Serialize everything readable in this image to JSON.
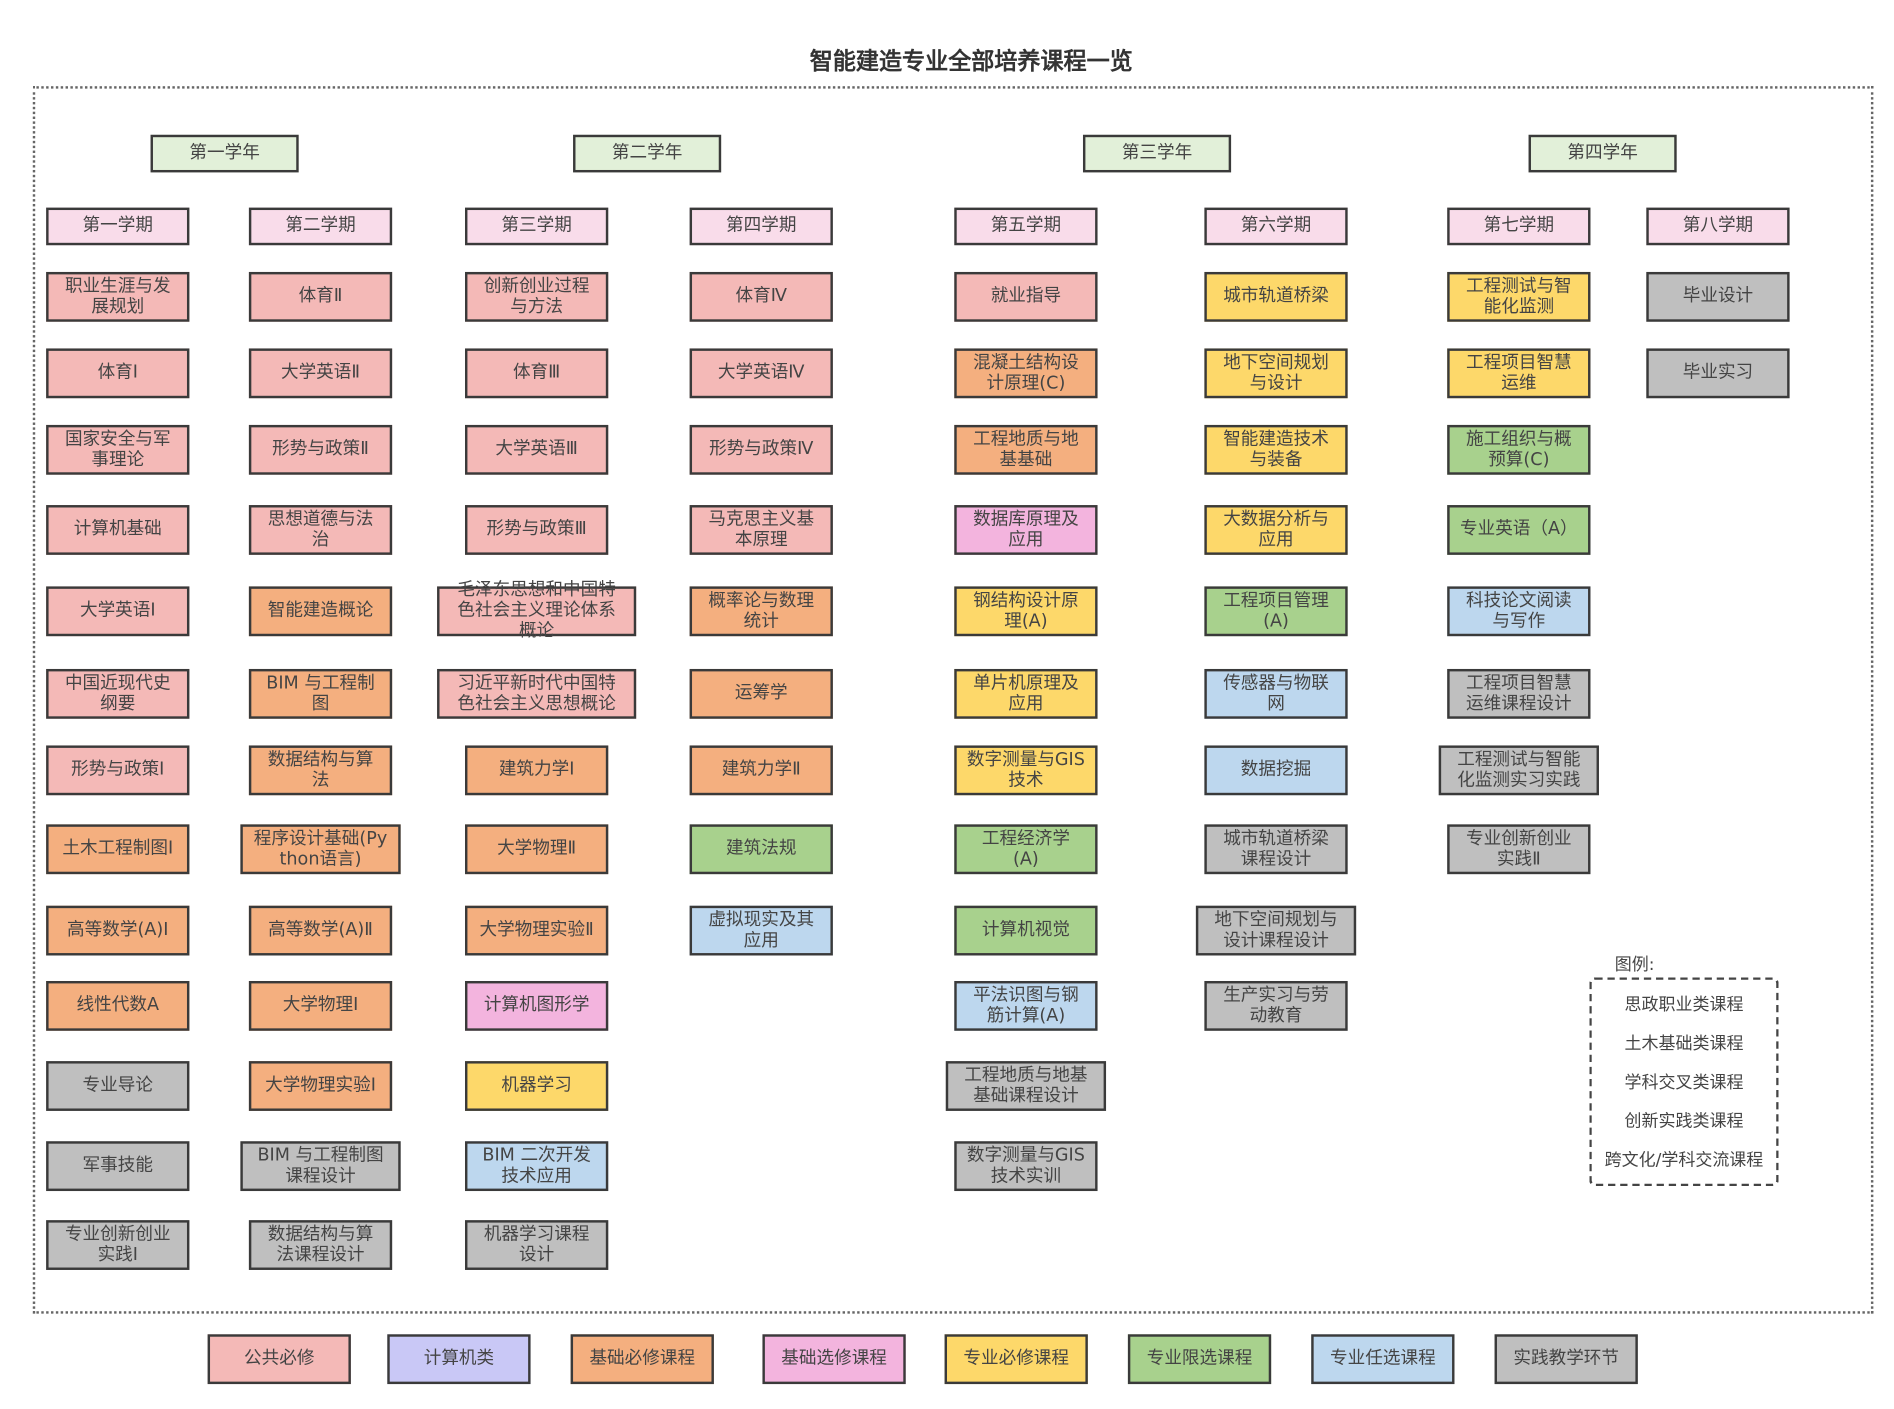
{
  "title": "智能建造专业全部培养课程一览",
  "categories": {
    "public": {
      "label": "公共必修",
      "color": "#f4b9b7"
    },
    "computer": {
      "label": "计算机类",
      "color": "#c9c8f6"
    },
    "basic": {
      "label": "基础必修课程",
      "color": "#f4af7f"
    },
    "basic_elective": {
      "label": "基础选修课程",
      "color": "#f3b4de"
    },
    "major": {
      "label": "专业必修课程",
      "color": "#fdd86a"
    },
    "major_limited": {
      "label": "专业限选课程",
      "color": "#a8d18d"
    },
    "major_optional": {
      "label": "专业任选课程",
      "color": "#bdd7ee"
    },
    "practice": {
      "label": "实践教学环节",
      "color": "#bfbfbf"
    }
  },
  "category_order": [
    "public",
    "computer",
    "basic",
    "basic_elective",
    "major",
    "major_limited",
    "major_optional",
    "practice"
  ],
  "years": [
    "第一学年",
    "第二学年",
    "第三学年",
    "第四学年"
  ],
  "semesters": [
    {
      "label": "第一学期",
      "courses": [
        {
          "name": "职业生涯与发展规划",
          "cat": "public"
        },
        {
          "name": "体育Ⅰ",
          "cat": "public"
        },
        {
          "name": "国家安全与军事理论",
          "cat": "public"
        },
        {
          "name": "计算机基础",
          "cat": "public"
        },
        {
          "name": "大学英语Ⅰ",
          "cat": "public"
        },
        {
          "name": "中国近现代史纲要",
          "cat": "public"
        },
        {
          "name": "形势与政策Ⅰ",
          "cat": "public"
        },
        {
          "name": "土木工程制图Ⅰ",
          "cat": "basic"
        },
        {
          "name": "高等数学(A)Ⅰ",
          "cat": "basic"
        },
        {
          "name": "线性代数A",
          "cat": "basic"
        },
        {
          "name": "专业导论",
          "cat": "practice"
        },
        {
          "name": "军事技能",
          "cat": "practice"
        },
        {
          "name": "专业创新创业实践Ⅰ",
          "cat": "practice"
        }
      ]
    },
    {
      "label": "第二学期",
      "courses": [
        {
          "name": "体育Ⅱ",
          "cat": "public"
        },
        {
          "name": "大学英语Ⅱ",
          "cat": "public"
        },
        {
          "name": "形势与政策Ⅱ",
          "cat": "public"
        },
        {
          "name": "思想道德与法治",
          "cat": "public"
        },
        {
          "name": "智能建造概论",
          "cat": "basic"
        },
        {
          "name": "BIM 与工程制图",
          "cat": "basic"
        },
        {
          "name": "数据结构与算法",
          "cat": "basic"
        },
        {
          "name": "程序设计基础(Python语言)",
          "cat": "basic"
        },
        {
          "name": "高等数学(A)Ⅱ",
          "cat": "basic"
        },
        {
          "name": "大学物理Ⅰ",
          "cat": "basic"
        },
        {
          "name": "大学物理实验Ⅰ",
          "cat": "basic"
        },
        {
          "name": "BIM 与工程制图课程设计",
          "cat": "practice"
        },
        {
          "name": "数据结构与算法课程设计",
          "cat": "practice"
        }
      ]
    },
    {
      "label": "第三学期",
      "courses": [
        {
          "name": "创新创业过程与方法",
          "cat": "public"
        },
        {
          "name": "体育Ⅲ",
          "cat": "public"
        },
        {
          "name": "大学英语Ⅲ",
          "cat": "public"
        },
        {
          "name": "形势与政策Ⅲ",
          "cat": "public"
        },
        {
          "name": "毛泽东思想和中国特色社会主义理论体系概论",
          "cat": "public"
        },
        {
          "name": "习近平新时代中国特色社会主义思想概论",
          "cat": "public"
        },
        {
          "name": "建筑力学Ⅰ",
          "cat": "basic"
        },
        {
          "name": "大学物理Ⅱ",
          "cat": "basic"
        },
        {
          "name": "大学物理实验Ⅱ",
          "cat": "basic"
        },
        {
          "name": "计算机图形学",
          "cat": "basic_elective"
        },
        {
          "name": "机器学习",
          "cat": "major"
        },
        {
          "name": "BIM 二次开发技术应用",
          "cat": "major_optional"
        },
        {
          "name": "机器学习课程设计",
          "cat": "practice"
        }
      ]
    },
    {
      "label": "第四学期",
      "courses": [
        {
          "name": "体育Ⅳ",
          "cat": "public"
        },
        {
          "name": "大学英语Ⅳ",
          "cat": "public"
        },
        {
          "name": "形势与政策Ⅳ",
          "cat": "public"
        },
        {
          "name": "马克思主义基本原理",
          "cat": "public"
        },
        {
          "name": "概率论与数理统计",
          "cat": "basic"
        },
        {
          "name": "运筹学",
          "cat": "basic"
        },
        {
          "name": "建筑力学Ⅱ",
          "cat": "basic"
        },
        {
          "name": "建筑法规",
          "cat": "major_limited"
        },
        {
          "name": "虚拟现实及其应用",
          "cat": "major_optional"
        }
      ]
    },
    {
      "label": "第五学期",
      "courses": [
        {
          "name": "就业指导",
          "cat": "public"
        },
        {
          "name": "混凝土结构设计原理(C)",
          "cat": "basic"
        },
        {
          "name": "工程地质与地基基础",
          "cat": "basic"
        },
        {
          "name": "数据库原理及应用",
          "cat": "basic_elective"
        },
        {
          "name": "钢结构设计原理(A)",
          "cat": "major"
        },
        {
          "name": "单片机原理及应用",
          "cat": "major"
        },
        {
          "name": "数字测量与GIS技术",
          "cat": "major"
        },
        {
          "name": "工程经济学 (A)",
          "cat": "major_limited"
        },
        {
          "name": "计算机视觉",
          "cat": "major_limited"
        },
        {
          "name": "平法识图与钢筋计算(A)",
          "cat": "major_optional"
        },
        {
          "name": "工程地质与地基基础课程设计",
          "cat": "practice"
        },
        {
          "name": "数字测量与GIS技术实训",
          "cat": "practice"
        }
      ]
    },
    {
      "label": "第六学期",
      "courses": [
        {
          "name": "城市轨道桥梁",
          "cat": "major"
        },
        {
          "name": "地下空间规划与设计",
          "cat": "major"
        },
        {
          "name": "智能建造技术与装备",
          "cat": "major"
        },
        {
          "name": "大数据分析与应用",
          "cat": "major"
        },
        {
          "name": "工程项目管理(A)",
          "cat": "major_limited"
        },
        {
          "name": "传感器与物联网",
          "cat": "major_optional"
        },
        {
          "name": "数据挖掘",
          "cat": "major_optional"
        },
        {
          "name": "城市轨道桥梁课程设计",
          "cat": "practice"
        },
        {
          "name": "地下空间规划与设计课程设计",
          "cat": "practice"
        },
        {
          "name": "生产实习与劳动教育",
          "cat": "practice"
        }
      ]
    },
    {
      "label": "第七学期",
      "courses": [
        {
          "name": "工程测试与智能化监测",
          "cat": "major"
        },
        {
          "name": "工程项目智慧运维",
          "cat": "major"
        },
        {
          "name": "施工组织与概预算(C)",
          "cat": "major_limited"
        },
        {
          "name": "专业英语（A）",
          "cat": "major_limited"
        },
        {
          "name": "科技论文阅读与写作",
          "cat": "major_optional"
        },
        {
          "name": "工程项目智慧运维课程设计",
          "cat": "practice"
        },
        {
          "name": "工程测试与智能化监测实习实践",
          "cat": "practice"
        },
        {
          "name": "专业创新创业实践Ⅱ",
          "cat": "practice"
        }
      ]
    },
    {
      "label": "第八学期",
      "courses": [
        {
          "name": "毕业设计",
          "cat": "practice"
        },
        {
          "name": "毕业实习",
          "cat": "practice"
        }
      ]
    }
  ],
  "legend": {
    "label": "图例:",
    "items": [
      "思政职业类课程",
      "土木基础类课程",
      "学科交叉类课程",
      "创新实践类课程",
      "跨文化/学科交流课程"
    ]
  }
}
